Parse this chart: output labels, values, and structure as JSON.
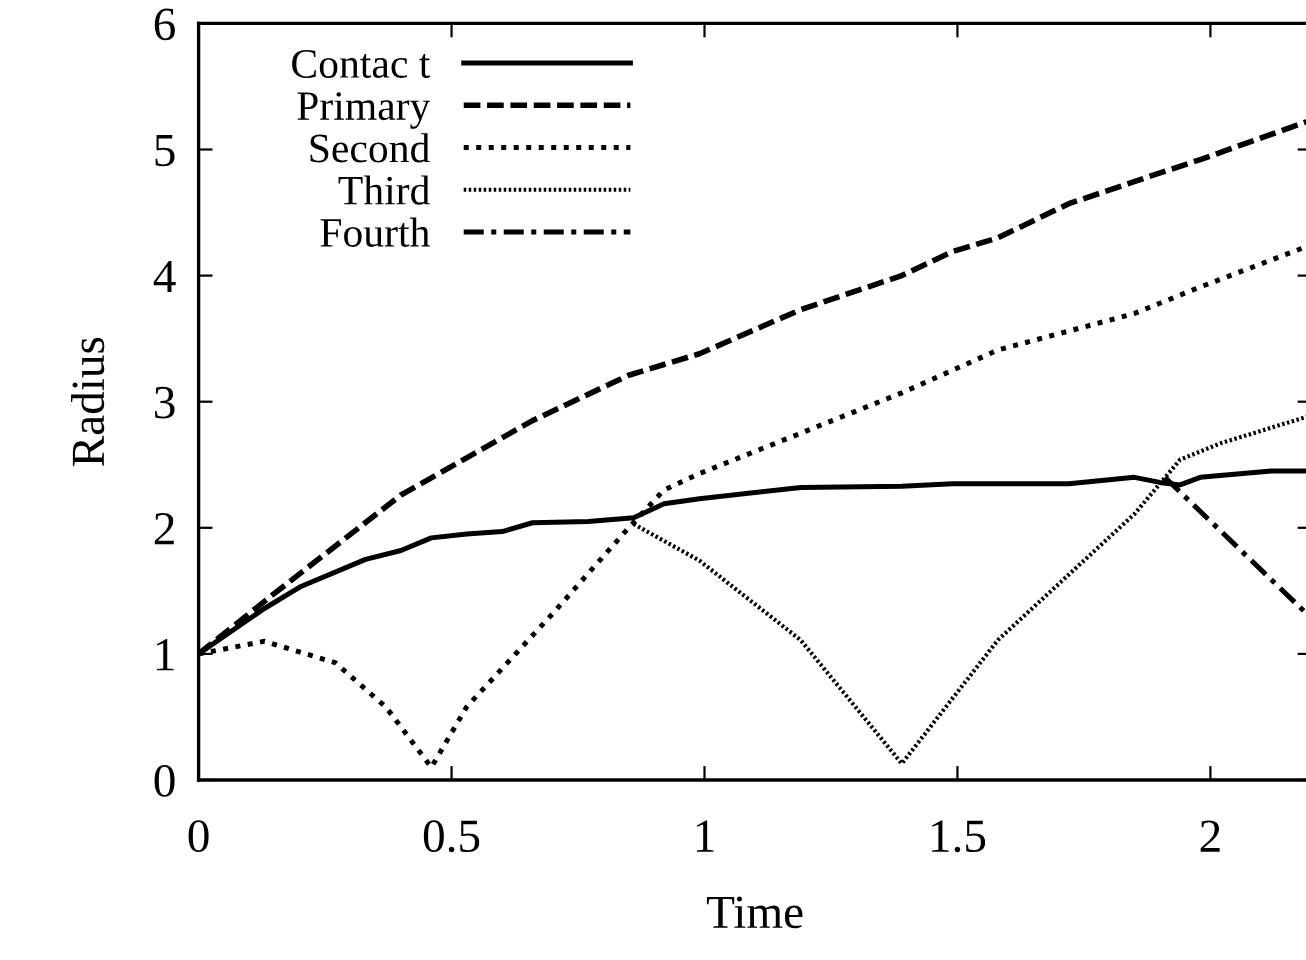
{
  "chart_data": {
    "type": "line",
    "xlabel": "Time",
    "ylabel": "Radius",
    "xlim": [
      0,
      2.2
    ],
    "ylim": [
      0,
      6
    ],
    "xticks": [
      0,
      0.5,
      1,
      1.5,
      2
    ],
    "yticks": [
      0,
      1,
      2,
      3,
      4,
      5,
      6
    ],
    "grid": false,
    "legend": "top left",
    "marker": "none",
    "series": [
      {
        "name": "Contac t",
        "color": "#000000",
        "line_style": "solid",
        "x": [
          0,
          0.13,
          0.2,
          0.33,
          0.4,
          0.46,
          0.53,
          0.6,
          0.66,
          0.77,
          0.86,
          0.92,
          0.99,
          1.19,
          1.39,
          1.49,
          1.72,
          1.85,
          1.9,
          1.94,
          1.98,
          2.12,
          2.19
        ],
        "values": [
          1.0,
          1.36,
          1.53,
          1.75,
          1.82,
          1.92,
          1.95,
          1.97,
          2.04,
          2.05,
          2.08,
          2.19,
          2.23,
          2.32,
          2.33,
          2.35,
          2.35,
          2.4,
          2.36,
          2.34,
          2.4,
          2.45,
          2.45
        ]
      },
      {
        "name": "Primary",
        "color": "#000000",
        "line_style": "dashed",
        "x": [
          0,
          0.15,
          0.4,
          0.66,
          0.85,
          0.99,
          1.19,
          1.39,
          1.49,
          1.58,
          1.72,
          1.89,
          1.98,
          2.19
        ],
        "values": [
          1.0,
          1.48,
          2.26,
          2.85,
          3.21,
          3.38,
          3.73,
          4.0,
          4.19,
          4.3,
          4.57,
          4.8,
          4.92,
          5.22
        ]
      },
      {
        "name": "Second",
        "color": "#000000",
        "line_style": "dotted",
        "x": [
          0,
          0.13,
          0.27,
          0.37,
          0.46,
          0.53,
          0.7,
          0.85,
          0.92,
          0.99,
          1.19,
          1.39,
          1.58,
          1.85,
          1.98,
          2.19
        ],
        "values": [
          1.0,
          1.1,
          0.93,
          0.58,
          0.1,
          0.58,
          1.32,
          2.0,
          2.3,
          2.43,
          2.75,
          3.07,
          3.41,
          3.7,
          3.91,
          4.23
        ]
      },
      {
        "name": "Third",
        "color": "#000000",
        "line_style": "densely dotted",
        "x": [
          0.86,
          0.99,
          1.19,
          1.39,
          1.58,
          1.85,
          1.94,
          2.02,
          2.19
        ],
        "values": [
          2.03,
          1.74,
          1.11,
          0.13,
          1.11,
          2.11,
          2.54,
          2.67,
          2.88
        ]
      },
      {
        "name": "Fourth",
        "color": "#000000",
        "line_style": "dashdot",
        "x": [
          1.91,
          2.19
        ],
        "values": [
          2.4,
          1.32
        ]
      }
    ]
  }
}
